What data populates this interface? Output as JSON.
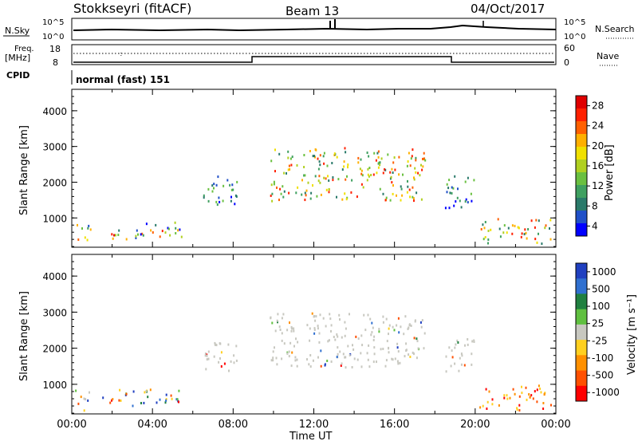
{
  "header": {
    "station": "Stokkseyri (fitACF)",
    "beam": "Beam 13",
    "date": "04/Oct/2017"
  },
  "status_panels": {
    "nsky_label": "N.Sky",
    "nsky_ticks": [
      "10^5",
      "10^0"
    ],
    "nsearch_label": "N.Search",
    "nsearch_ticks": [
      "10^5",
      "10^0"
    ],
    "freq_label": "Freq.",
    "freq_unit": "[MHz]",
    "freq_ticks": [
      "18",
      "8"
    ],
    "nave_label": "Nave",
    "nave_ticks": [
      "60",
      "0"
    ],
    "cpid_label": "CPID",
    "cpid_value": "normal (fast) 151"
  },
  "chart_data": [
    {
      "type": "heatmap",
      "title": "",
      "quantity": "Power",
      "ylabel": "Slant Range [km]",
      "yticks": [
        "1000",
        "2000",
        "3000",
        "4000"
      ],
      "ylim": [
        180,
        4600
      ],
      "colorbar_label": "Power [dB]",
      "colorbar_ticks": [
        "4",
        "8",
        "12",
        "16",
        "20",
        "24",
        "28"
      ],
      "colorbar_colors": [
        "#0000ff",
        "#2050c8",
        "#2a7a6a",
        "#3fa060",
        "#6ac040",
        "#b0d020",
        "#f0e000",
        "#ffb000",
        "#ff6000",
        "#ff2000",
        "#e00000"
      ],
      "regions": [
        {
          "t": [
            0.1,
            0.9
          ],
          "r": [
            300,
            900
          ],
          "level": "mixed"
        },
        {
          "t": [
            1.5,
            3.5
          ],
          "r": [
            400,
            800
          ],
          "level": "mixed"
        },
        {
          "t": [
            3.5,
            5.5
          ],
          "r": [
            400,
            900
          ],
          "level": "mixed"
        },
        {
          "t": [
            6.5,
            8.5
          ],
          "r": [
            1400,
            2200
          ],
          "level": "low"
        },
        {
          "t": [
            9.8,
            17.5
          ],
          "r": [
            1500,
            3000
          ],
          "level": "high"
        },
        {
          "t": [
            18.5,
            20.0
          ],
          "r": [
            1300,
            2300
          ],
          "level": "low"
        },
        {
          "t": [
            20.2,
            23.8
          ],
          "r": [
            300,
            1000
          ],
          "level": "high"
        }
      ]
    },
    {
      "type": "heatmap",
      "title": "",
      "quantity": "Velocity",
      "ylabel": "Slant Range [km]",
      "yticks": [
        "1000",
        "2000",
        "3000",
        "4000"
      ],
      "ylim": [
        180,
        4600
      ],
      "xlabel": "Time UT",
      "xticks": [
        "00:00",
        "04:00",
        "08:00",
        "12:00",
        "16:00",
        "20:00",
        "00:00"
      ],
      "colorbar_label": "Velocity [m s⁻¹]",
      "colorbar_ticks": [
        "1000",
        "500",
        "100",
        "25",
        "-25",
        "-100",
        "-500",
        "-1000"
      ],
      "colorbar_colors": [
        "#2040c0",
        "#3070d0",
        "#208040",
        "#60c040",
        "#c8c8c0",
        "#ffd020",
        "#ff9000",
        "#ff5000",
        "#ff0000"
      ],
      "regions": [
        {
          "t": [
            0.1,
            0.9
          ],
          "r": [
            300,
            900
          ],
          "level": "mixed"
        },
        {
          "t": [
            1.5,
            5.5
          ],
          "r": [
            400,
            900
          ],
          "level": "mixed"
        },
        {
          "t": [
            6.5,
            8.5
          ],
          "r": [
            1400,
            2200
          ],
          "level": "grey"
        },
        {
          "t": [
            9.8,
            17.5
          ],
          "r": [
            1500,
            3000
          ],
          "level": "grey"
        },
        {
          "t": [
            18.5,
            20.0
          ],
          "r": [
            1300,
            2300
          ],
          "level": "grey"
        },
        {
          "t": [
            20.2,
            23.8
          ],
          "r": [
            300,
            1000
          ],
          "level": "orange"
        }
      ]
    }
  ]
}
